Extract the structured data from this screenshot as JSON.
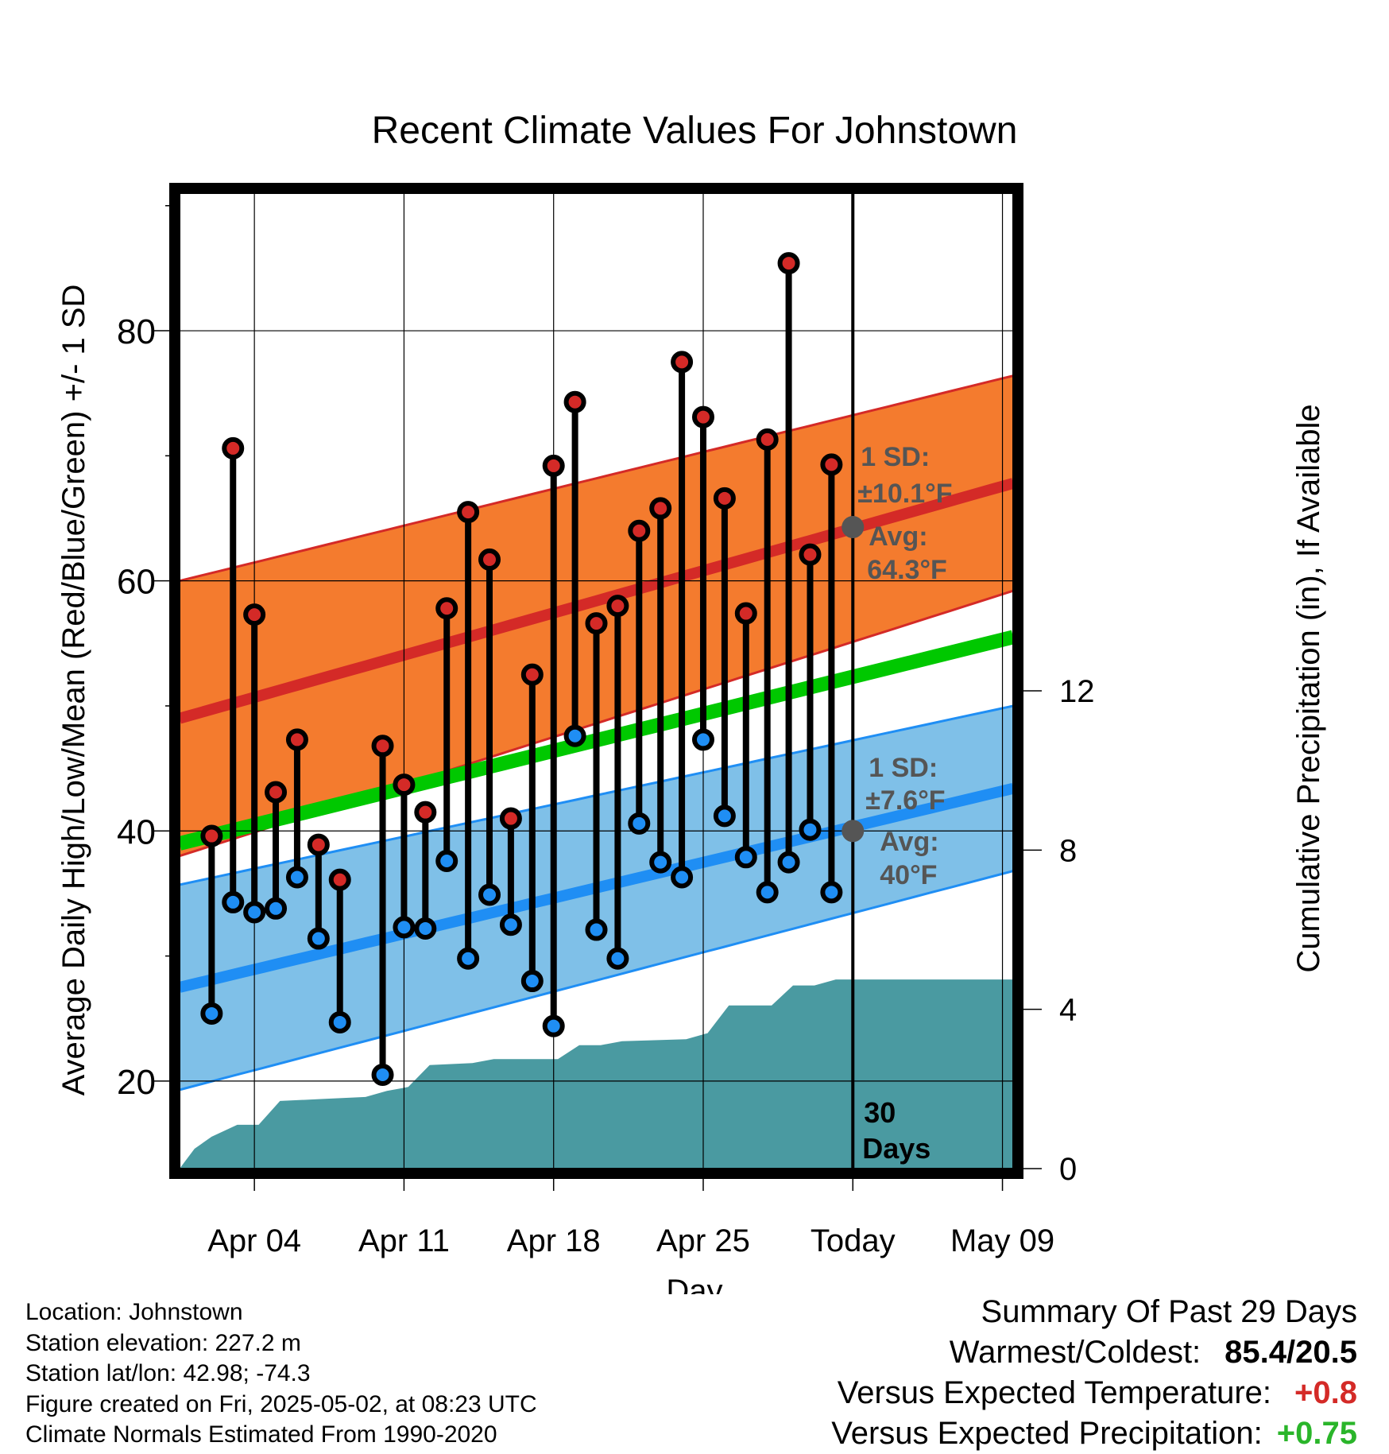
{
  "chart_data": {
    "type": "line",
    "title": "Recent Climate Values For Johnstown",
    "xlabel": "Day",
    "ylabel": "Average Daily High/Low/Mean (Red/Blue/Green) +/- 1 SD",
    "y2label": "Cumulative Precipitation (in), If Available",
    "ylim": [
      13,
      91
    ],
    "y2lim": [
      0,
      24.5
    ],
    "xlim": [
      0.5,
      39.5
    ],
    "yticks": [
      20,
      40,
      60,
      80
    ],
    "y2ticks": [
      0,
      4,
      8,
      12
    ],
    "xticks": [
      {
        "day": 4,
        "label": "Apr 04"
      },
      {
        "day": 11,
        "label": "Apr 11"
      },
      {
        "day": 18,
        "label": "Apr 18"
      },
      {
        "day": 25,
        "label": "Apr 25"
      },
      {
        "day": 32,
        "label": "Today"
      },
      {
        "day": 39,
        "label": "May 09"
      }
    ],
    "today_day": 32,
    "today_label": [
      "30",
      "Days"
    ],
    "days": [
      2,
      3,
      4,
      5,
      6,
      7,
      8,
      10,
      11,
      12,
      13,
      14,
      15,
      16,
      17,
      18,
      19,
      20,
      21,
      22,
      23,
      24,
      25,
      26,
      27,
      28,
      29,
      30,
      31
    ],
    "highs": [
      39.6,
      70.6,
      57.3,
      43.1,
      47.3,
      38.9,
      36.1,
      46.8,
      43.7,
      41.5,
      57.8,
      65.5,
      61.7,
      41.0,
      52.5,
      69.2,
      74.3,
      56.6,
      58.0,
      64.0,
      65.8,
      77.5,
      73.1,
      66.6,
      57.4,
      71.3,
      85.4,
      62.1,
      69.3
    ],
    "lows": [
      25.4,
      34.3,
      33.5,
      33.8,
      36.3,
      31.4,
      24.7,
      20.5,
      32.3,
      32.2,
      37.6,
      29.8,
      34.9,
      32.5,
      28.0,
      24.4,
      47.6,
      32.1,
      29.8,
      40.6,
      37.5,
      36.3,
      47.3,
      41.2,
      37.9,
      35.1,
      37.5,
      40.1,
      35.1
    ],
    "normals": {
      "high_start": 49.0,
      "high_end": 67.8,
      "high_sd_start": 11.0,
      "high_sd_end": 8.6,
      "low_start": 27.5,
      "low_end": 43.4,
      "low_sd_start": 8.2,
      "low_sd_end": 6.6,
      "mean_start": 39.0,
      "mean_end": 55.5
    },
    "precip_cumulative": [
      {
        "day": 0.5,
        "value": 0.0
      },
      {
        "day": 1.2,
        "value": 0.5
      },
      {
        "day": 2.0,
        "value": 0.8
      },
      {
        "day": 3.2,
        "value": 1.1
      },
      {
        "day": 4.2,
        "value": 1.1
      },
      {
        "day": 5.2,
        "value": 1.7
      },
      {
        "day": 7.2,
        "value": 1.75
      },
      {
        "day": 9.2,
        "value": 1.8
      },
      {
        "day": 10.2,
        "value": 1.95
      },
      {
        "day": 11.2,
        "value": 2.05
      },
      {
        "day": 12.2,
        "value": 2.6
      },
      {
        "day": 14.2,
        "value": 2.65
      },
      {
        "day": 15.2,
        "value": 2.75
      },
      {
        "day": 18.2,
        "value": 2.75
      },
      {
        "day": 19.2,
        "value": 3.1
      },
      {
        "day": 20.2,
        "value": 3.1
      },
      {
        "day": 21.2,
        "value": 3.2
      },
      {
        "day": 24.2,
        "value": 3.25
      },
      {
        "day": 25.2,
        "value": 3.4
      },
      {
        "day": 26.2,
        "value": 4.1
      },
      {
        "day": 28.2,
        "value": 4.1
      },
      {
        "day": 29.2,
        "value": 4.6
      },
      {
        "day": 30.2,
        "value": 4.6
      },
      {
        "day": 31.2,
        "value": 4.75
      },
      {
        "day": 39.5,
        "value": 4.75
      }
    ],
    "annotations": {
      "high": {
        "sd_line1": "1 SD:",
        "sd_line2": "±10.1°F",
        "avg_line1": "Avg:",
        "avg_line2": "64.3°F",
        "avg_value": 64.3
      },
      "low": {
        "sd_line1": "1 SD:",
        "sd_line2": "±7.6°F",
        "avg_line1": "Avg:",
        "avg_line2": "40°F",
        "avg_value": 40.0
      }
    },
    "colors": {
      "high_band": "#f47b2e",
      "high_line": "#d42a27",
      "low_band": "#7fc0e8",
      "low_line": "#1f8ef4",
      "mean_line": "#00c800",
      "precip": "#4a9aa1",
      "high_dot": "#d42a27",
      "low_dot": "#1f8ef4",
      "annotation": "#555555"
    },
    "grid": true
  },
  "footer": {
    "location": "Location: Johnstown",
    "elevation": "Station elevation: 227.2 m",
    "latlon": "Station lat/lon: 42.98; -74.3",
    "created": "Figure created on Fri, 2025-05-02, at 08:23 UTC",
    "normals": "Climate Normals Estimated From 1990-2020"
  },
  "summary": {
    "title": "Summary Of Past 29 Days",
    "warmest_label": "Warmest/Coldest:",
    "warmest_value": "85.4/20.5",
    "temp_label": "Versus Expected Temperature:",
    "temp_value": "+0.8",
    "temp_color": "#d42a27",
    "precip_label": "Versus Expected Precipitation:",
    "precip_value": "+0.75",
    "precip_color": "#2ab52a"
  }
}
